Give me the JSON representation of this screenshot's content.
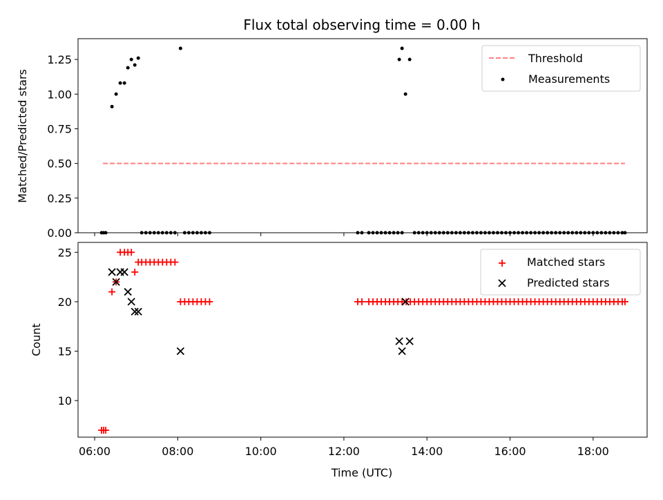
{
  "chart_data": [
    {
      "type": "scatter",
      "title": "Flux total observing time = 0.00 h",
      "xlabel": "",
      "ylabel": "Matched/Predicted stars",
      "xlim": [
        "05:36",
        "19:18"
      ],
      "ylim": [
        0,
        1.4
      ],
      "yticks": [
        0.0,
        0.25,
        0.5,
        0.75,
        1.0,
        1.25
      ],
      "ytick_labels": [
        "0.00",
        "0.25",
        "0.50",
        "0.75",
        "1.00",
        "1.25"
      ],
      "legend": "top-right",
      "threshold": {
        "name": "Threshold",
        "value": 0.5,
        "x_start": "06:12",
        "x_end": "18:46",
        "color": "#ff7f7f",
        "style": "dashed"
      },
      "series": [
        {
          "name": "Measurements",
          "color": "#000000",
          "marker": "dot",
          "points": [
            [
              "06:10",
              0.0
            ],
            [
              "06:13",
              0.0
            ],
            [
              "06:16",
              0.0
            ],
            [
              "06:25",
              0.91
            ],
            [
              "06:31",
              1.0
            ],
            [
              "06:37",
              1.08
            ],
            [
              "06:43",
              1.08
            ],
            [
              "06:48",
              1.19
            ],
            [
              "06:53",
              1.25
            ],
            [
              "06:58",
              1.21
            ],
            [
              "07:03",
              1.26
            ],
            [
              "07:08",
              0.0
            ],
            [
              "07:14",
              0.0
            ],
            [
              "07:20",
              0.0
            ],
            [
              "07:26",
              0.0
            ],
            [
              "07:32",
              0.0
            ],
            [
              "07:38",
              0.0
            ],
            [
              "07:44",
              0.0
            ],
            [
              "07:50",
              0.0
            ],
            [
              "07:56",
              0.0
            ],
            [
              "08:04",
              1.33
            ],
            [
              "08:10",
              0.0
            ],
            [
              "08:16",
              0.0
            ],
            [
              "08:22",
              0.0
            ],
            [
              "08:28",
              0.0
            ],
            [
              "08:34",
              0.0
            ],
            [
              "08:40",
              0.0
            ],
            [
              "08:46",
              0.0
            ],
            [
              "12:20",
              0.0
            ],
            [
              "12:26",
              0.0
            ],
            [
              "12:36",
              0.0
            ],
            [
              "12:42",
              0.0
            ],
            [
              "12:48",
              0.0
            ],
            [
              "12:54",
              0.0
            ],
            [
              "13:00",
              0.0
            ],
            [
              "13:06",
              0.0
            ],
            [
              "13:12",
              0.0
            ],
            [
              "13:18",
              0.0
            ],
            [
              "13:24",
              0.0
            ],
            [
              "13:20",
              1.25
            ],
            [
              "13:24",
              1.33
            ],
            [
              "13:29",
              1.0
            ],
            [
              "13:35",
              1.25
            ],
            [
              "13:42",
              0.0
            ],
            [
              "13:48",
              0.0
            ],
            [
              "13:54",
              0.0
            ],
            [
              "14:00",
              0.0
            ],
            [
              "14:06",
              0.0
            ],
            [
              "14:12",
              0.0
            ],
            [
              "14:18",
              0.0
            ],
            [
              "14:24",
              0.0
            ],
            [
              "14:30",
              0.0
            ],
            [
              "14:36",
              0.0
            ],
            [
              "14:42",
              0.0
            ],
            [
              "14:48",
              0.0
            ],
            [
              "14:54",
              0.0
            ],
            [
              "15:00",
              0.0
            ],
            [
              "15:06",
              0.0
            ],
            [
              "15:12",
              0.0
            ],
            [
              "15:18",
              0.0
            ],
            [
              "15:24",
              0.0
            ],
            [
              "15:30",
              0.0
            ],
            [
              "15:36",
              0.0
            ],
            [
              "15:42",
              0.0
            ],
            [
              "15:48",
              0.0
            ],
            [
              "15:54",
              0.0
            ],
            [
              "16:00",
              0.0
            ],
            [
              "16:06",
              0.0
            ],
            [
              "16:12",
              0.0
            ],
            [
              "16:18",
              0.0
            ],
            [
              "16:24",
              0.0
            ],
            [
              "16:30",
              0.0
            ],
            [
              "16:36",
              0.0
            ],
            [
              "16:42",
              0.0
            ],
            [
              "16:48",
              0.0
            ],
            [
              "16:54",
              0.0
            ],
            [
              "17:00",
              0.0
            ],
            [
              "17:06",
              0.0
            ],
            [
              "17:12",
              0.0
            ],
            [
              "17:18",
              0.0
            ],
            [
              "17:24",
              0.0
            ],
            [
              "17:30",
              0.0
            ],
            [
              "17:36",
              0.0
            ],
            [
              "17:42",
              0.0
            ],
            [
              "17:48",
              0.0
            ],
            [
              "17:54",
              0.0
            ],
            [
              "18:00",
              0.0
            ],
            [
              "18:06",
              0.0
            ],
            [
              "18:12",
              0.0
            ],
            [
              "18:18",
              0.0
            ],
            [
              "18:24",
              0.0
            ],
            [
              "18:30",
              0.0
            ],
            [
              "18:36",
              0.0
            ],
            [
              "18:42",
              0.0
            ],
            [
              "18:46",
              0.0
            ]
          ]
        }
      ]
    },
    {
      "type": "scatter",
      "title": "",
      "xlabel": "Time (UTC)",
      "ylabel": "Count",
      "xlim": [
        "05:36",
        "19:18"
      ],
      "ylim": [
        6.3,
        26.0
      ],
      "yticks": [
        10,
        15,
        20,
        25
      ],
      "ytick_labels": [
        "10",
        "15",
        "20",
        "25"
      ],
      "xticks": [
        "06:00",
        "08:00",
        "10:00",
        "12:00",
        "14:00",
        "16:00",
        "18:00"
      ],
      "xtick_labels": [
        "06:00",
        "08:00",
        "10:00",
        "12:00",
        "14:00",
        "16:00",
        "18:00"
      ],
      "legend": "top-right",
      "series": [
        {
          "name": "Matched stars",
          "color": "#ff0000",
          "marker": "plus",
          "points": [
            [
              "06:10",
              7
            ],
            [
              "06:13",
              7
            ],
            [
              "06:16",
              7
            ],
            [
              "06:25",
              21
            ],
            [
              "06:31",
              22
            ],
            [
              "06:37",
              25
            ],
            [
              "06:43",
              25
            ],
            [
              "06:48",
              25
            ],
            [
              "06:53",
              25
            ],
            [
              "06:58",
              23
            ],
            [
              "07:03",
              24
            ],
            [
              "07:08",
              24
            ],
            [
              "07:14",
              24
            ],
            [
              "07:20",
              24
            ],
            [
              "07:26",
              24
            ],
            [
              "07:32",
              24
            ],
            [
              "07:38",
              24
            ],
            [
              "07:44",
              24
            ],
            [
              "07:50",
              24
            ],
            [
              "07:56",
              24
            ],
            [
              "08:04",
              20
            ],
            [
              "08:10",
              20
            ],
            [
              "08:16",
              20
            ],
            [
              "08:22",
              20
            ],
            [
              "08:28",
              20
            ],
            [
              "08:34",
              20
            ],
            [
              "08:40",
              20
            ],
            [
              "08:46",
              20
            ],
            [
              "12:20",
              20
            ],
            [
              "12:26",
              20
            ],
            [
              "12:36",
              20
            ],
            [
              "12:42",
              20
            ],
            [
              "12:48",
              20
            ],
            [
              "12:54",
              20
            ],
            [
              "13:00",
              20
            ],
            [
              "13:06",
              20
            ],
            [
              "13:12",
              20
            ],
            [
              "13:18",
              20
            ],
            [
              "13:24",
              20
            ],
            [
              "13:30",
              20
            ],
            [
              "13:36",
              20
            ],
            [
              "13:42",
              20
            ],
            [
              "13:48",
              20
            ],
            [
              "13:54",
              20
            ],
            [
              "14:00",
              20
            ],
            [
              "14:06",
              20
            ],
            [
              "14:12",
              20
            ],
            [
              "14:18",
              20
            ],
            [
              "14:24",
              20
            ],
            [
              "14:30",
              20
            ],
            [
              "14:36",
              20
            ],
            [
              "14:42",
              20
            ],
            [
              "14:48",
              20
            ],
            [
              "14:54",
              20
            ],
            [
              "15:00",
              20
            ],
            [
              "15:06",
              20
            ],
            [
              "15:12",
              20
            ],
            [
              "15:18",
              20
            ],
            [
              "15:24",
              20
            ],
            [
              "15:30",
              20
            ],
            [
              "15:36",
              20
            ],
            [
              "15:42",
              20
            ],
            [
              "15:48",
              20
            ],
            [
              "15:54",
              20
            ],
            [
              "16:00",
              20
            ],
            [
              "16:06",
              20
            ],
            [
              "16:12",
              20
            ],
            [
              "16:18",
              20
            ],
            [
              "16:24",
              20
            ],
            [
              "16:30",
              20
            ],
            [
              "16:36",
              20
            ],
            [
              "16:42",
              20
            ],
            [
              "16:48",
              20
            ],
            [
              "16:54",
              20
            ],
            [
              "17:00",
              20
            ],
            [
              "17:06",
              20
            ],
            [
              "17:12",
              20
            ],
            [
              "17:18",
              20
            ],
            [
              "17:24",
              20
            ],
            [
              "17:30",
              20
            ],
            [
              "17:36",
              20
            ],
            [
              "17:42",
              20
            ],
            [
              "17:48",
              20
            ],
            [
              "17:54",
              20
            ],
            [
              "18:00",
              20
            ],
            [
              "18:06",
              20
            ],
            [
              "18:12",
              20
            ],
            [
              "18:18",
              20
            ],
            [
              "18:24",
              20
            ],
            [
              "18:30",
              20
            ],
            [
              "18:36",
              20
            ],
            [
              "18:42",
              20
            ],
            [
              "18:46",
              20
            ]
          ]
        },
        {
          "name": "Predicted stars",
          "color": "#000000",
          "marker": "x",
          "points": [
            [
              "06:25",
              23
            ],
            [
              "06:31",
              22
            ],
            [
              "06:37",
              23
            ],
            [
              "06:43",
              23
            ],
            [
              "06:48",
              21
            ],
            [
              "06:53",
              20
            ],
            [
              "06:58",
              19
            ],
            [
              "07:03",
              19
            ],
            [
              "08:04",
              15
            ],
            [
              "13:20",
              16
            ],
            [
              "13:24",
              15
            ],
            [
              "13:29",
              20
            ],
            [
              "13:35",
              16
            ]
          ]
        }
      ]
    }
  ]
}
